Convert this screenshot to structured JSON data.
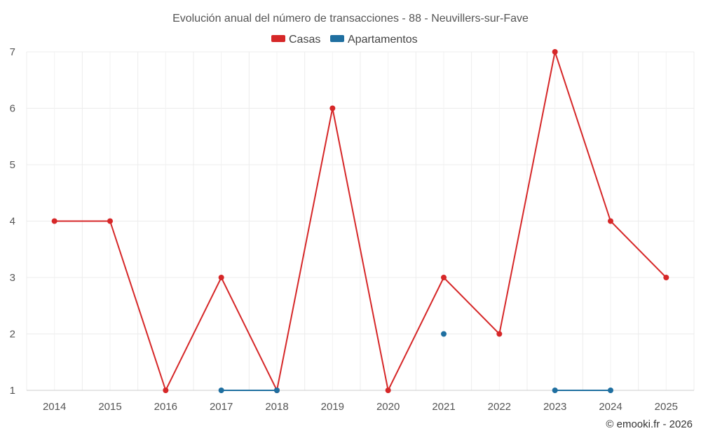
{
  "chart_data": {
    "type": "line",
    "title": "Evolución anual del número de transacciones - 88 - Neuvillers-sur-Fave",
    "x": [
      2014,
      2015,
      2016,
      2017,
      2018,
      2019,
      2020,
      2021,
      2022,
      2023,
      2024,
      2025
    ],
    "x_tick_labels": [
      "2014",
      "2015",
      "2016",
      "2017",
      "2018",
      "2019",
      "2020",
      "2021",
      "2022",
      "2023",
      "2024",
      "2025"
    ],
    "y_tick_labels": [
      "1",
      "2",
      "3",
      "4",
      "5",
      "6",
      "7"
    ],
    "ylim": [
      1,
      7
    ],
    "grid": true,
    "legend_position": "top-center",
    "series": [
      {
        "name": "Casas",
        "color": "#d62728",
        "values": [
          4,
          4,
          1,
          3,
          1,
          6,
          1,
          3,
          2,
          7,
          4,
          3
        ]
      },
      {
        "name": "Apartamentos",
        "color": "#1f6fa0",
        "values": [
          null,
          null,
          null,
          1,
          1,
          null,
          null,
          2,
          null,
          1,
          1,
          null
        ]
      }
    ],
    "footer": "© emooki.fr - 2026"
  }
}
